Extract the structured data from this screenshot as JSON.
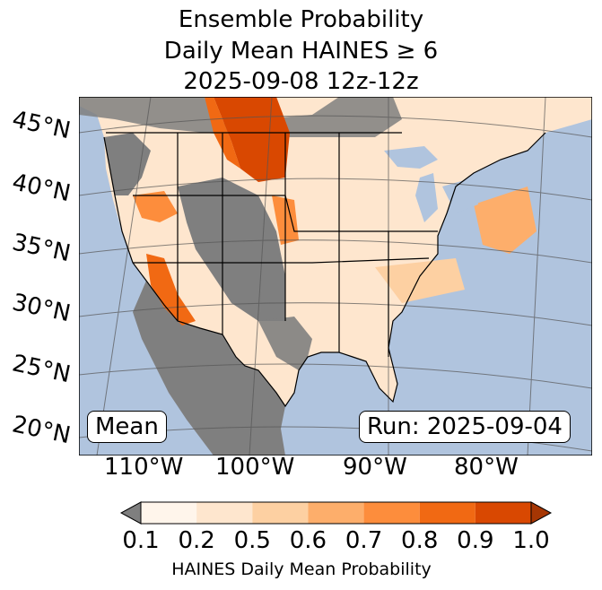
{
  "title": {
    "line1": "Ensemble Probability",
    "line2": "Daily Mean HAINES ≥ 6",
    "line3": "2025-09-08 12z-12z"
  },
  "map": {
    "lat_labels": [
      "45°N",
      "40°N",
      "35°N",
      "30°N",
      "25°N",
      "20°N"
    ],
    "lon_labels": [
      "110°W",
      "100°W",
      "90°W",
      "80°W"
    ],
    "stat_box": "Mean",
    "run_box": "Run: 2025-09-04",
    "colors": {
      "ocean": "#b0c4de",
      "land_missing": "#7f7f7f",
      "land_low": "#fff5eb",
      "border": "#000000",
      "grid": "#555555"
    }
  },
  "colorbar": {
    "ticks": [
      "0.1",
      "0.2",
      "0.5",
      "0.6",
      "0.7",
      "0.8",
      "0.9",
      "1.0"
    ],
    "colors": [
      "#fff5eb",
      "#fee6ce",
      "#fdd0a2",
      "#fdae6b",
      "#fd8d3c",
      "#f16913",
      "#d94801",
      "#a63603"
    ],
    "under_color": "#7f7f7f",
    "label": "HAINES Daily Mean Probability"
  }
}
